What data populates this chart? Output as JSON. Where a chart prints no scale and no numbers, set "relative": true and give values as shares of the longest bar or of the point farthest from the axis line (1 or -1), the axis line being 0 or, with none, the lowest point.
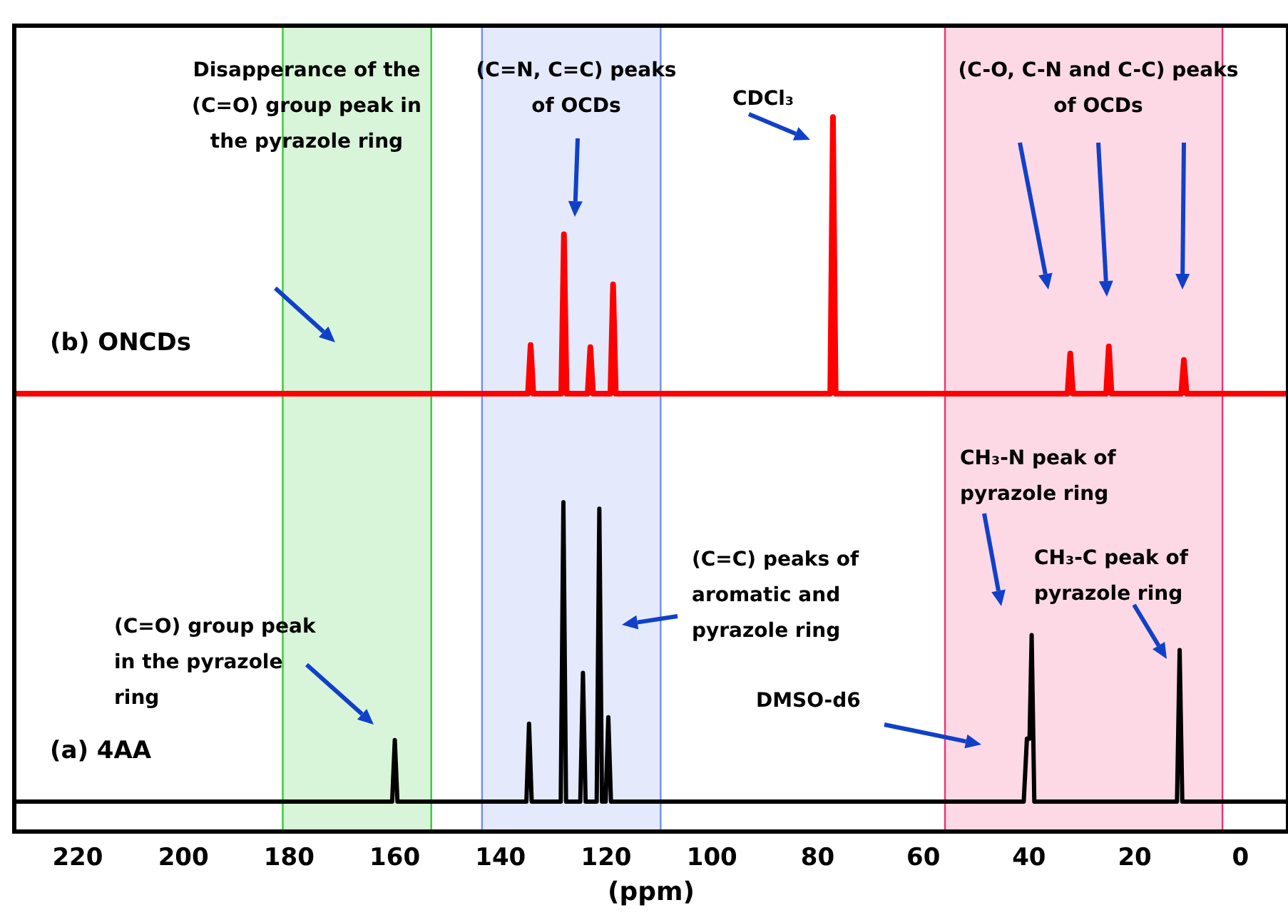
{
  "chart_data": {
    "type": "line",
    "relative": true,
    "xlabel": "(ppm)",
    "xlim": [
      232,
      -9
    ],
    "xticks": [
      220,
      200,
      180,
      160,
      140,
      120,
      100,
      80,
      60,
      40,
      20,
      0
    ],
    "tick_labels": "x",
    "grid": false,
    "legend": false,
    "marker": "none",
    "line_style": "solid",
    "series": [
      {
        "name": "(a) 4AA",
        "color": "#000000",
        "x": [
          232,
          160.5,
          160,
          159.5,
          135.1,
          134.6,
          134.1,
          128.6,
          128.1,
          127.6,
          124.9,
          124.4,
          123.9,
          121.8,
          121.3,
          120.8,
          120.1,
          119.6,
          119.1,
          41,
          40.4,
          39.9,
          39.5,
          39,
          12,
          11.5,
          11,
          -9
        ],
        "values": [
          0.042,
          0.042,
          0.128,
          0.042,
          0.042,
          0.151,
          0.042,
          0.042,
          0.461,
          0.042,
          0.042,
          0.222,
          0.042,
          0.042,
          0.452,
          0.042,
          0.042,
          0.16,
          0.042,
          0.042,
          0.13,
          0.13,
          0.275,
          0.042,
          0.042,
          0.254,
          0.042,
          0.042
        ]
      },
      {
        "name": "(b) ONCDs",
        "color": "#ff0000",
        "x": [
          232,
          134.8,
          134.3,
          133.8,
          128.5,
          128,
          127.5,
          123.5,
          123,
          122.5,
          119.2,
          118.7,
          118.2,
          77.6,
          77.1,
          76.6,
          32.7,
          32.2,
          31.7,
          25.4,
          24.9,
          24.4,
          11.2,
          10.7,
          10.2,
          -9
        ],
        "values": [
          0.613,
          0.613,
          0.681,
          0.613,
          0.613,
          0.836,
          0.613,
          0.613,
          0.678,
          0.613,
          0.613,
          0.766,
          0.613,
          0.613,
          1,
          0.613,
          0.613,
          0.669,
          0.613,
          0.613,
          0.679,
          0.613,
          0.613,
          0.66,
          0.613,
          0.613
        ]
      }
    ],
    "bands": [
      {
        "axis": "x",
        "from": 181.2,
        "to": 153.1,
        "color": "#33cc33"
      },
      {
        "axis": "x",
        "from": 143.5,
        "to": 109.7,
        "color": "#6f8ff0"
      },
      {
        "axis": "x",
        "from": 55.9,
        "to": 3.4,
        "color": "#ee3377"
      }
    ],
    "annotations": [
      "Disapperance of the (C=O) group peak in the pyrazole ring",
      "(C=N, C=C) peaks of OCDs",
      "CDCl₃",
      "(C-O, C-N and C-C) peaks of OCDs",
      "(C=O) group peak in the pyrazole ring",
      "(C=C) peaks of aromatic and pyrazole ring",
      "DMSO-d6",
      "CH₃-N peak of pyrazole ring",
      "CH₃-C peak of pyrazole ring"
    ]
  }
}
